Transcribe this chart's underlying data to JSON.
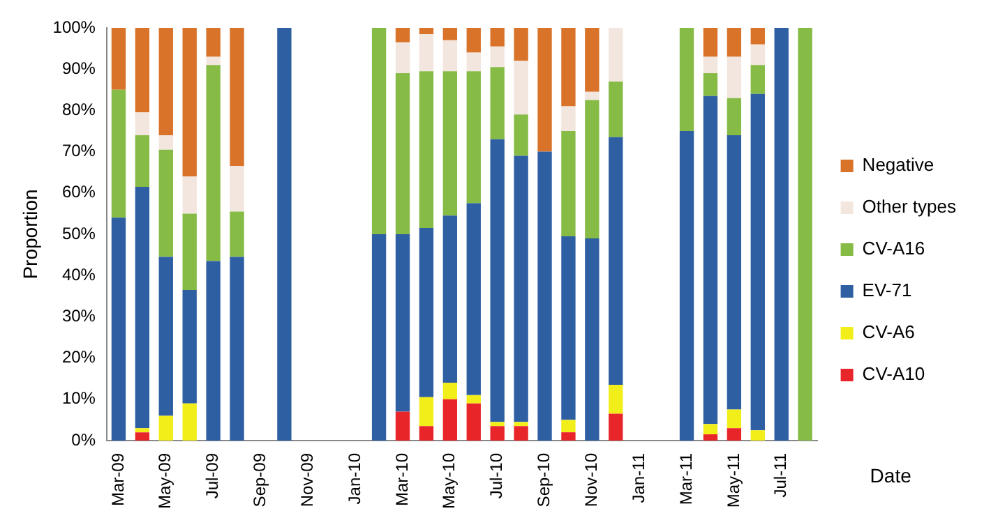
{
  "chart_data": {
    "type": "bar",
    "stacked": true,
    "xlabel": "Date",
    "ylabel": "Proportion",
    "categories": [
      "Mar-09",
      null,
      "May-09",
      null,
      "Jul-09",
      null,
      "Sep-09",
      null,
      "Nov-09",
      null,
      "Jan-10",
      null,
      "Mar-10",
      null,
      "May-10",
      null,
      "Jul-10",
      null,
      "Sep-10",
      null,
      "Nov-10",
      null,
      "Jan-11",
      null,
      "Mar-11",
      null,
      "May-11",
      null,
      "Jul-11",
      null
    ],
    "series": [
      {
        "name": "CV-A10",
        "color": "#e8262a",
        "values": [
          null,
          2,
          null,
          null,
          null,
          null,
          null,
          null,
          null,
          null,
          null,
          null,
          7,
          3.5,
          10,
          9,
          3.5,
          3.5,
          null,
          2,
          null,
          6.5,
          null,
          null,
          null,
          1.5,
          3,
          null,
          null,
          null
        ]
      },
      {
        "name": "CV-A6",
        "color": "#f2ee1a",
        "values": [
          null,
          1,
          6,
          9,
          null,
          null,
          null,
          null,
          null,
          null,
          null,
          null,
          null,
          7,
          4,
          2,
          1,
          1,
          null,
          3,
          null,
          7,
          null,
          null,
          null,
          2.5,
          4.5,
          2.5,
          null,
          null
        ]
      },
      {
        "name": "EV-71",
        "color": "#2e5fa3",
        "values": [
          54,
          58.5,
          38.5,
          27.5,
          43.5,
          44.5,
          null,
          100,
          null,
          null,
          null,
          50,
          43,
          41,
          40.5,
          46.5,
          68.5,
          64.5,
          70,
          44.5,
          49,
          60,
          null,
          null,
          75,
          79.5,
          66.5,
          81.5,
          100,
          null
        ]
      },
      {
        "name": "CV-A16",
        "color": "#86bb45",
        "values": [
          31,
          12.5,
          26,
          18.5,
          47.5,
          11,
          null,
          null,
          null,
          null,
          null,
          50,
          39,
          38,
          35,
          32,
          17.5,
          10,
          null,
          25.5,
          33.5,
          13.5,
          null,
          null,
          25,
          5.5,
          9,
          7,
          null,
          100
        ]
      },
      {
        "name": "Other types",
        "color": "#f2e6de",
        "values": [
          null,
          5.5,
          3.5,
          9,
          2,
          11,
          null,
          null,
          null,
          null,
          null,
          null,
          7.5,
          9,
          7.5,
          4.5,
          5,
          13,
          null,
          6,
          2,
          13,
          null,
          null,
          null,
          4,
          10,
          5,
          null,
          null
        ]
      },
      {
        "name": "Negative",
        "color": "#d9732a",
        "values": [
          15,
          20.5,
          26,
          36,
          7,
          33.5,
          null,
          null,
          null,
          null,
          null,
          null,
          3.5,
          1.5,
          3,
          6,
          4.5,
          8,
          30,
          19,
          15.5,
          null,
          null,
          null,
          null,
          7,
          7,
          4,
          null,
          null
        ]
      }
    ],
    "ylim": [
      0,
      100
    ],
    "yticks": [
      {
        "value": 0,
        "label": "0%"
      },
      {
        "value": 10,
        "label": "10%"
      },
      {
        "value": 20,
        "label": "20%"
      },
      {
        "value": 30,
        "label": "30%"
      },
      {
        "value": 40,
        "label": "40%"
      },
      {
        "value": 50,
        "label": "50%"
      },
      {
        "value": 60,
        "label": "60%"
      },
      {
        "value": 70,
        "label": "70%"
      },
      {
        "value": 80,
        "label": "80%"
      },
      {
        "value": 90,
        "label": "90%"
      },
      {
        "value": 100,
        "label": "100%"
      }
    ],
    "grid": false,
    "legend": "right"
  }
}
